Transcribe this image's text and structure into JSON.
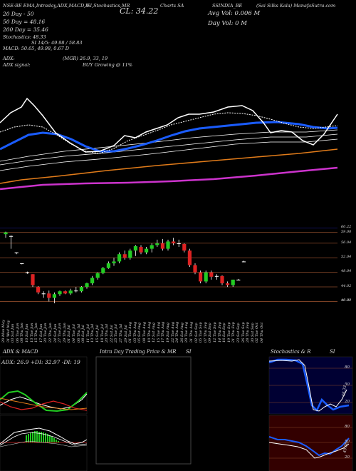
{
  "header": {
    "line1": "NSE:BE EMA,Intraday,ADX,MACD,R",
    "line1b": "SI,Stochastics,MR",
    "cl_label": "CL: 34.22",
    "charts_label": "Charts SA",
    "ticker": "SSINDIA_BE",
    "site": "(Sai Silks Kala) ManafaSutra.com",
    "avg_vol": "Avg Vol: 0.006   M",
    "day_vol": "Day Vol: 0   M",
    "ema20": "20   Day   - 50",
    "ema50": "50   Day   = 48.16",
    "ema200": "200   Day   = 35.46",
    "stoch": "Stochastics: 48.33",
    "rsi": "SI 14/5: 49.98 / 58.83",
    "macd": "MACD: 50.65, 49.98, 0.67 D",
    "adx": "ADX:",
    "adx_vals": "(MGR) 26.9,  33,  19",
    "adx_signal": "ADX   signal:",
    "buy_signal": "BUY Growing @ 11%"
  },
  "price_labels": [
    "60.22",
    "59.00",
    "56.04",
    "52.04",
    "48.04",
    "44.02",
    "40.02",
    "40.01"
  ],
  "date_labels": [
    "29 Mon",
    "31 Wed",
    "03 Sat",
    "06 Tue",
    "08 Thu",
    "10 Sat",
    "13 Tue",
    "15 Thu",
    "17 Sat",
    "20 Tue",
    "22 Thu",
    "24 Sat",
    "27 Tue",
    "29 Thu",
    "01 Sat",
    "04 Tue",
    "06 Thu",
    "08 Sat",
    "11 Tue",
    "13 Thu",
    "15 Sat",
    "18 Tue",
    "20 Thu",
    "22 Sat",
    "25 Tue",
    "27 Thu",
    "29 Sat",
    "01 Tue",
    "03 Thu",
    "05 Sat",
    "08 Tue",
    "10 Thu",
    "12 Sat",
    "15 Tue",
    "17 Thu",
    "19 Sat",
    "22 Tue",
    "24 Thu",
    "26 Sat",
    "29 Tue",
    "31 Thu",
    "02 Sat",
    "05 Tue",
    "07 Thu",
    "09 Sat",
    "12 Tue",
    "14 Thu",
    "16 Sat",
    "19 Tue",
    "21 Thu",
    "23 Sat",
    "26 Tue",
    "28 Thu",
    "30 Sat",
    "02 Tue",
    "04 Thu"
  ],
  "date_months": [
    "May",
    "May",
    "Jun",
    "Jun",
    "Jun",
    "Jun",
    "Jun",
    "Jun",
    "Jun",
    "Jun",
    "Jun",
    "Jun",
    "Jun",
    "Jun",
    "Jul",
    "Jul",
    "Jul",
    "Jul",
    "Jul",
    "Jul",
    "Jul",
    "Jul",
    "Jul",
    "Jul",
    "Jul",
    "Jul",
    "Jul",
    "Aug",
    "Aug",
    "Aug",
    "Aug",
    "Aug",
    "Aug",
    "Aug",
    "Aug",
    "Aug",
    "Aug",
    "Aug",
    "Aug",
    "Aug",
    "Aug",
    "Sep",
    "Sep",
    "Sep",
    "Sep",
    "Sep",
    "Sep",
    "Sep",
    "Sep",
    "Sep",
    "Sep",
    "Sep",
    "Sep",
    "Sep",
    "Oct",
    "Oct"
  ],
  "bottom": {
    "adx_title": "ADX  & MACD",
    "adx_readout": "ADX: 26.9  +DI: 32.97  -DI: 19",
    "intraday_title": "Intra  Day Trading Price  & MR",
    "intraday_si": "SI",
    "stoch_title": "Stochastics & R",
    "stoch_si": "SI",
    "stoch_ticks": [
      "80",
      "50",
      "20"
    ],
    "stoch_value": "48.33",
    "rsi_ticks": [
      "80",
      "50",
      "20"
    ],
    "rsi_value": "49.98"
  },
  "colors": {
    "ema20": "#1a5cff",
    "ema50": "#ffffff",
    "ema200": "#e07b1a",
    "ema_slow": "#cc33cc",
    "up": "#22cc22",
    "down": "#dd2222",
    "grid": "#8b4a2a",
    "stoch_bg": "#000033",
    "rsi_bg": "#330000"
  },
  "chart_data": {
    "type": "candlestick",
    "candles": [
      {
        "o": 58.5,
        "h": 59.2,
        "l": 57.5,
        "c": 59.0
      },
      {
        "o": 58.0,
        "h": 58.2,
        "l": 54.5,
        "c": 58.0
      },
      {
        "o": 53.5,
        "h": 53.5,
        "l": 53.0,
        "c": 53.3
      },
      {
        "o": 50.5,
        "h": 50.5,
        "l": 50.2,
        "c": 50.3
      },
      {
        "o": 48.0,
        "h": 48.2,
        "l": 47.6,
        "c": 47.8
      },
      {
        "o": 47.5,
        "h": 47.5,
        "l": 44.0,
        "c": 44.5
      },
      {
        "o": 44.0,
        "h": 44.2,
        "l": 42.0,
        "c": 42.5
      },
      {
        "o": 42.0,
        "h": 42.8,
        "l": 41.0,
        "c": 42.2
      },
      {
        "o": 42.2,
        "h": 43.0,
        "l": 40.0,
        "c": 41.0
      },
      {
        "o": 41.0,
        "h": 42.5,
        "l": 39.5,
        "c": 42.0
      },
      {
        "o": 42.0,
        "h": 43.0,
        "l": 41.5,
        "c": 42.8
      },
      {
        "o": 42.8,
        "h": 43.0,
        "l": 42.0,
        "c": 42.2
      },
      {
        "o": 42.2,
        "h": 43.5,
        "l": 41.8,
        "c": 43.0
      },
      {
        "o": 43.0,
        "h": 44.0,
        "l": 42.5,
        "c": 42.8
      },
      {
        "o": 42.8,
        "h": 44.2,
        "l": 42.5,
        "c": 44.0
      },
      {
        "o": 44.0,
        "h": 45.2,
        "l": 43.5,
        "c": 45.0
      },
      {
        "o": 45.0,
        "h": 47.0,
        "l": 44.5,
        "c": 46.5
      },
      {
        "o": 46.5,
        "h": 48.0,
        "l": 46.0,
        "c": 47.8
      },
      {
        "o": 47.8,
        "h": 49.5,
        "l": 47.5,
        "c": 49.2
      },
      {
        "o": 49.2,
        "h": 51.0,
        "l": 49.0,
        "c": 50.5
      },
      {
        "o": 50.5,
        "h": 52.0,
        "l": 49.8,
        "c": 51.0
      },
      {
        "o": 51.0,
        "h": 53.5,
        "l": 50.5,
        "c": 53.0
      },
      {
        "o": 53.0,
        "h": 54.0,
        "l": 51.5,
        "c": 52.0
      },
      {
        "o": 52.0,
        "h": 54.5,
        "l": 51.5,
        "c": 54.0
      },
      {
        "o": 54.0,
        "h": 55.5,
        "l": 52.5,
        "c": 55.2
      },
      {
        "o": 55.0,
        "h": 55.5,
        "l": 53.0,
        "c": 53.5
      },
      {
        "o": 53.5,
        "h": 55.0,
        "l": 53.0,
        "c": 54.5
      },
      {
        "o": 54.5,
        "h": 56.0,
        "l": 53.5,
        "c": 55.5
      },
      {
        "o": 55.5,
        "h": 57.0,
        "l": 55.0,
        "c": 56.0
      },
      {
        "o": 56.0,
        "h": 57.2,
        "l": 54.0,
        "c": 54.5
      },
      {
        "o": 54.5,
        "h": 57.0,
        "l": 54.0,
        "c": 56.5
      },
      {
        "o": 56.5,
        "h": 57.5,
        "l": 55.5,
        "c": 56.0
      },
      {
        "o": 56.0,
        "h": 57.0,
        "l": 55.0,
        "c": 55.8
      },
      {
        "o": 55.8,
        "h": 56.0,
        "l": 53.5,
        "c": 54.0
      },
      {
        "o": 54.0,
        "h": 54.5,
        "l": 49.5,
        "c": 50.0
      },
      {
        "o": 50.0,
        "h": 50.5,
        "l": 47.5,
        "c": 48.0
      },
      {
        "o": 48.0,
        "h": 48.5,
        "l": 45.0,
        "c": 45.5
      },
      {
        "o": 45.5,
        "h": 48.5,
        "l": 45.0,
        "c": 48.0
      },
      {
        "o": 48.0,
        "h": 48.5,
        "l": 46.0,
        "c": 46.8
      },
      {
        "o": 46.8,
        "h": 47.5,
        "l": 46.0,
        "c": 47.0
      },
      {
        "o": 47.0,
        "h": 47.2,
        "l": 44.5,
        "c": 45.0
      },
      {
        "o": 45.0,
        "h": 45.5,
        "l": 44.0,
        "c": 44.5
      },
      {
        "o": 44.5,
        "h": 46.0,
        "l": 44.0,
        "c": 46.0
      },
      {
        "o": 46.0,
        "h": 46.2,
        "l": 45.8,
        "c": 46.0
      },
      {
        "o": 51.0,
        "h": 51.2,
        "l": 50.8,
        "c": 51.0
      }
    ]
  }
}
